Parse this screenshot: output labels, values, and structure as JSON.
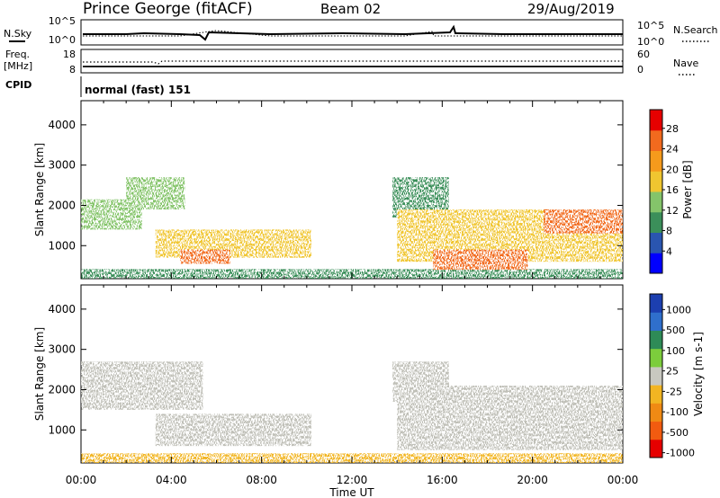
{
  "header": {
    "station": "Prince George (fitACF)",
    "beam": "Beam 02",
    "date": "29/Aug/2019"
  },
  "top_panels": {
    "nsky_label": "N.Sky",
    "nsearch_label": "N.Search",
    "noise_left_ticks": [
      "10^5",
      "10^0"
    ],
    "noise_right_ticks": [
      "10^5",
      "10^0"
    ],
    "freq_label": "Freq.",
    "freq_unit": "[MHz]",
    "freq_ticks": [
      "18",
      "8"
    ],
    "nave_label": "Nave",
    "nave_ticks": [
      "60",
      "0"
    ],
    "cpid_label": "CPID",
    "cpid_value": "normal (fast) 151"
  },
  "colors": {
    "power_scale": [
      "#0000ff",
      "#2a55b0",
      "#3b8f5a",
      "#84c46a",
      "#f0c630",
      "#f59a1c",
      "#f26a1e",
      "#e60000"
    ],
    "velocity_scale": [
      "#1c3fb0",
      "#2f6fcc",
      "#2e8b57",
      "#7ccd3c",
      "#c8c8c0",
      "#f2b522",
      "#f08a14",
      "#f25b10",
      "#e60000"
    ],
    "ground_scatter": "#c0c0b8"
  },
  "chart_data": [
    {
      "type": "heatmap",
      "name": "power",
      "xlabel": "",
      "ylabel": "Slant Range [km]",
      "xlim": [
        0,
        24
      ],
      "ylim": [
        180,
        4600
      ],
      "yticks": [
        1000,
        2000,
        3000,
        4000
      ],
      "colorbar": {
        "label": "Power [dB]",
        "ticks": [
          "28",
          "24",
          "20",
          "16",
          "12",
          "8",
          "4"
        ],
        "range": [
          0,
          30
        ]
      },
      "regions": [
        {
          "t0": 0.0,
          "t1": 2.7,
          "r0": 1400,
          "r1": 2150,
          "level": 12
        },
        {
          "t0": 2.0,
          "t1": 4.6,
          "r0": 1900,
          "r1": 2700,
          "level": 14
        },
        {
          "t0": 3.3,
          "t1": 10.2,
          "r0": 700,
          "r1": 1400,
          "level": 15
        },
        {
          "t0": 4.4,
          "t1": 6.6,
          "r0": 550,
          "r1": 900,
          "level": 25
        },
        {
          "t0": 0.0,
          "t1": 24.0,
          "r0": 180,
          "r1": 420,
          "level": 10
        },
        {
          "t0": 13.8,
          "t1": 16.3,
          "r0": 1700,
          "r1": 2700,
          "level": 11
        },
        {
          "t0": 14.0,
          "t1": 24.0,
          "r0": 600,
          "r1": 1900,
          "level": 18
        },
        {
          "t0": 15.6,
          "t1": 19.8,
          "r0": 400,
          "r1": 900,
          "level": 26
        },
        {
          "t0": 20.5,
          "t1": 24.0,
          "r0": 1300,
          "r1": 1900,
          "level": 24
        }
      ]
    },
    {
      "type": "heatmap",
      "name": "velocity",
      "xlabel": "Time UT",
      "ylabel": "Slant Range [km]",
      "xlim": [
        0,
        24
      ],
      "ylim": [
        180,
        4600
      ],
      "yticks": [
        1000,
        2000,
        3000,
        4000
      ],
      "xticks": [
        "00:00",
        "04:00",
        "08:00",
        "12:00",
        "16:00",
        "20:00",
        "00:00"
      ],
      "colorbar": {
        "label": "Velocity [m s-1]",
        "ticks": [
          "1000",
          "500",
          "100",
          "25",
          "-25",
          "-100",
          "-500",
          "-1000"
        ]
      },
      "regions": [
        {
          "t0": 0.0,
          "t1": 5.4,
          "r0": 1500,
          "r1": 2700,
          "level": 0
        },
        {
          "t0": 3.3,
          "t1": 10.2,
          "r0": 600,
          "r1": 1400,
          "level": 0
        },
        {
          "t0": 0.0,
          "t1": 24.0,
          "r0": 180,
          "r1": 420,
          "level": -60
        },
        {
          "t0": 13.8,
          "t1": 16.3,
          "r0": 1700,
          "r1": 2700,
          "level": 0
        },
        {
          "t0": 14.0,
          "t1": 24.0,
          "r0": 500,
          "r1": 2100,
          "level": 0
        }
      ]
    }
  ]
}
